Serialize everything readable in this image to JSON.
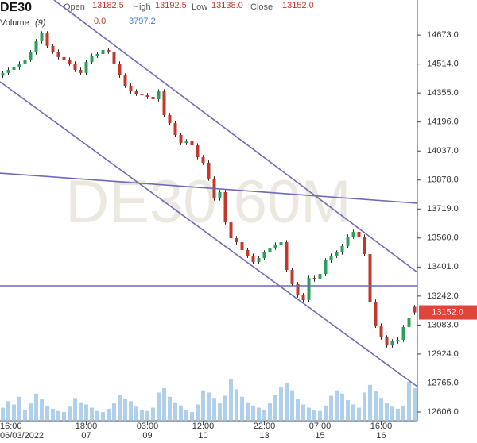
{
  "chart_data": {
    "type": "candlestick",
    "symbol": "DE30",
    "watermark": "DE30 60M",
    "ohlc_header": [
      {
        "name": "Open",
        "value": "13182.5"
      },
      {
        "name": "High",
        "value": "13192.5"
      },
      {
        "name": "Low",
        "value": "13138.0"
      },
      {
        "name": "Close",
        "value": "13152.0"
      }
    ],
    "volume_header": {
      "name": "Volume",
      "period": "(9)",
      "values": [
        "0.0",
        "3797.2"
      ]
    },
    "ylim": [
      12558,
      14865
    ],
    "yticks": [
      {
        "value": 14673,
        "label": "14673.0"
      },
      {
        "value": 14514,
        "label": "14514.0"
      },
      {
        "value": 14355,
        "label": "14355.0"
      },
      {
        "value": 14196,
        "label": "14196.0"
      },
      {
        "value": 14037,
        "label": "14037.0"
      },
      {
        "value": 13878,
        "label": "13878.0"
      },
      {
        "value": 13719,
        "label": "13719.0"
      },
      {
        "value": 13560,
        "label": "13560.0"
      },
      {
        "value": 13401,
        "label": "13401.0"
      },
      {
        "value": 13242,
        "label": "13242.0"
      },
      {
        "value": 13083,
        "label": "13083.0"
      },
      {
        "value": 12924,
        "label": "12924.0"
      },
      {
        "value": 12765,
        "label": "12765.0"
      },
      {
        "value": 12606,
        "label": "12606.0"
      }
    ],
    "xticks": [
      {
        "value": 2,
        "label": "16:00"
      },
      {
        "value": 15,
        "label": "18:00"
      },
      {
        "value": 26,
        "label": "03:00"
      },
      {
        "value": 36,
        "label": "12:00"
      },
      {
        "value": 47,
        "label": "22:00"
      },
      {
        "value": 57,
        "label": "07:00"
      },
      {
        "value": 68,
        "label": "16:00"
      }
    ],
    "xtick_dates": [
      "06/03/2022",
      "07",
      "09",
      "10",
      "13",
      "15",
      "16"
    ],
    "up_color": "#2ca05a",
    "down_color": "#c0392b",
    "open": [
      14450,
      14465,
      14482,
      14495,
      14517,
      14538,
      14578,
      14639,
      14682,
      14613,
      14582,
      14552,
      14538,
      14517,
      14482,
      14465,
      14525,
      14560,
      14569,
      14591,
      14582,
      14517,
      14451,
      14395,
      14364,
      14351,
      14343,
      14334,
      14321,
      14364,
      14234,
      14190,
      14125,
      14081,
      14090,
      14068,
      14003,
      13973,
      13886,
      13777,
      13812,
      13646,
      13559,
      13537,
      13494,
      13463,
      13429,
      13450,
      13481,
      13507,
      13524,
      13537,
      13385,
      13307,
      13246,
      13220,
      13341,
      13333,
      13363,
      13437,
      13463,
      13481,
      13516,
      13568,
      13594,
      13568,
      13472,
      13211,
      13080,
      13015,
      12971,
      12993,
      13002,
      13072,
      13182.5
    ],
    "high": [
      14477,
      14494,
      14507,
      14529,
      14550,
      14590,
      14651,
      14694,
      14694,
      14625,
      14594,
      14564,
      14550,
      14529,
      14494,
      14537,
      14572,
      14581,
      14603,
      14603,
      14594,
      14529,
      14463,
      14407,
      14376,
      14363,
      14355,
      14346,
      14376,
      14376,
      14246,
      14202,
      14137,
      14102,
      14102,
      14080,
      14015,
      13985,
      13898,
      13824,
      13824,
      13658,
      13571,
      13549,
      13506,
      13475,
      13462,
      13493,
      13519,
      13536,
      13549,
      13549,
      13397,
      13319,
      13258,
      13353,
      13353,
      13375,
      13449,
      13475,
      13493,
      13528,
      13580,
      13606,
      13606,
      13580,
      13484,
      13223,
      13092,
      13027,
      13005,
      13014,
      13084,
      13136,
      13192.5
    ],
    "low": [
      14438,
      14453,
      14470,
      14483,
      14505,
      14526,
      14566,
      14627,
      14601,
      14570,
      14540,
      14526,
      14505,
      14470,
      14453,
      14453,
      14513,
      14548,
      14557,
      14570,
      14505,
      14439,
      14383,
      14352,
      14339,
      14331,
      14322,
      14309,
      14309,
      14222,
      14178,
      14113,
      14069,
      14069,
      14056,
      13991,
      13961,
      13874,
      13765,
      13765,
      13634,
      13547,
      13525,
      13482,
      13451,
      13417,
      13417,
      13438,
      13469,
      13495,
      13512,
      13373,
      13295,
      13234,
      13208,
      13208,
      13321,
      13321,
      13351,
      13425,
      13451,
      13469,
      13504,
      13556,
      13556,
      13460,
      13199,
      13068,
      13003,
      12959,
      12959,
      12981,
      12990,
      13060,
      13138
    ],
    "close": [
      14465,
      14482,
      14495,
      14517,
      14538,
      14578,
      14639,
      14682,
      14613,
      14582,
      14552,
      14538,
      14517,
      14482,
      14465,
      14525,
      14560,
      14569,
      14591,
      14582,
      14517,
      14451,
      14395,
      14364,
      14351,
      14343,
      14334,
      14321,
      14364,
      14234,
      14190,
      14125,
      14081,
      14090,
      14068,
      14003,
      13973,
      13886,
      13777,
      13812,
      13646,
      13559,
      13537,
      13494,
      13463,
      13429,
      13450,
      13481,
      13507,
      13524,
      13537,
      13385,
      13307,
      13246,
      13220,
      13341,
      13333,
      13363,
      13437,
      13463,
      13481,
      13516,
      13568,
      13594,
      13568,
      13472,
      13211,
      13080,
      13015,
      12971,
      12993,
      13002,
      13072,
      13124,
      13152
    ],
    "volume": [
      1200,
      1800,
      1500,
      2200,
      1000,
      1600,
      2500,
      2000,
      1400,
      1100,
      900,
      800,
      1300,
      2100,
      1700,
      1500,
      1200,
      900,
      800,
      1100,
      1600,
      2400,
      2000,
      1800,
      1300,
      1000,
      900,
      1200,
      2600,
      3000,
      2200,
      1700,
      1400,
      1000,
      800,
      1500,
      2800,
      2600,
      2100,
      1600,
      2300,
      3800,
      2900,
      2200,
      1700,
      1400,
      1200,
      1000,
      1600,
      2400,
      3100,
      3500,
      2800,
      2000,
      1500,
      1200,
      1000,
      900,
      1400,
      2300,
      2800,
      2500,
      1900,
      1500,
      1200,
      2600,
      3300,
      2700,
      2100,
      1600,
      1300,
      1100,
      1400,
      3600,
      3000
    ],
    "price_marker": {
      "value": 13152,
      "label": "13152.0"
    },
    "line_color": "#6d6ab8",
    "trend_lines": [
      {
        "x": [
          -0.5,
          74.5
        ],
        "y": [
          14417,
          12745
        ]
      },
      {
        "x": [
          9.2,
          74.5
        ],
        "y": [
          14865,
          13372
        ]
      },
      {
        "x": [
          -0.5,
          74.5
        ],
        "y": [
          13916,
          13751
        ]
      },
      {
        "x": [
          -0.5,
          74.5
        ],
        "y": [
          13298,
          13298
        ]
      }
    ]
  }
}
